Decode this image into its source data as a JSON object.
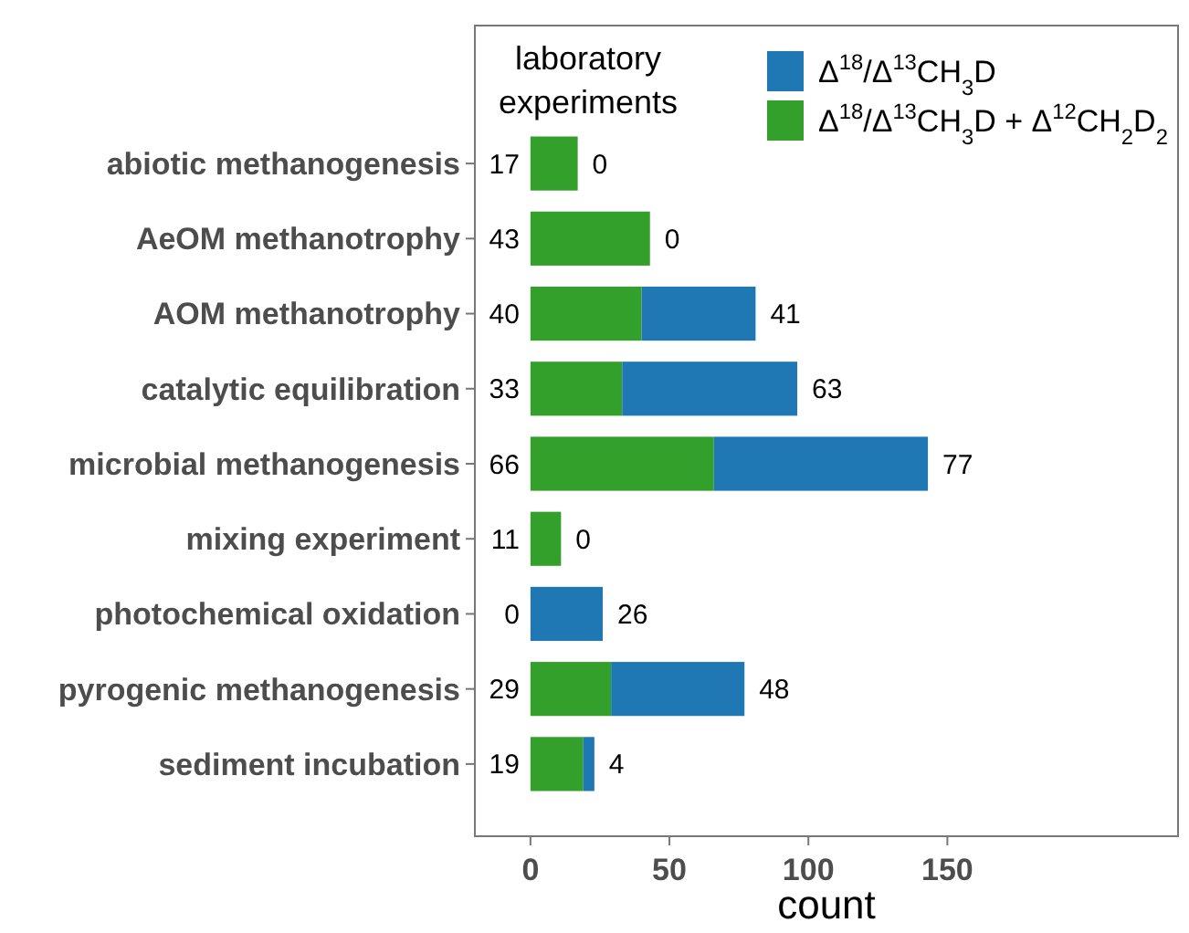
{
  "chart_data": {
    "type": "bar",
    "orientation": "horizontal",
    "stacked": true,
    "xlabel": "count",
    "categories": [
      "abiotic methanogenesis",
      "AeOM methanotrophy",
      "AOM methanotrophy",
      "catalytic equilibration",
      "microbial methanogenesis",
      "mixing experiment",
      "photochemical oxidation",
      "pyrogenic methanogenesis",
      "sediment incubation"
    ],
    "series": [
      {
        "name": "Δ$^{18}$/Δ$^{13}$CH$_{3}$D + Δ$^{12}$CH$_{2}$D$_{2}$",
        "color": "#33a02c",
        "values": [
          17,
          43,
          40,
          33,
          66,
          11,
          0,
          29,
          19
        ]
      },
      {
        "name": "Δ$^{18}$/Δ$^{13}$CH$_{3}$D",
        "color": "#1f78b4",
        "values": [
          0,
          0,
          41,
          63,
          77,
          0,
          26,
          48,
          4
        ]
      }
    ],
    "data_labels": true,
    "xlim": [
      -20,
      233
    ],
    "xticks": [
      0,
      50,
      100,
      150
    ],
    "grid": false,
    "legend": "top right",
    "annotations": [
      "laboratory experiments"
    ]
  }
}
